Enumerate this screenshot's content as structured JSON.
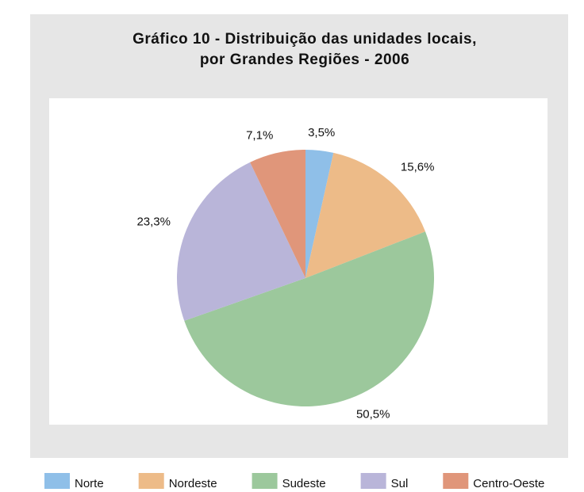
{
  "chart_data": {
    "type": "pie",
    "title": [
      "Gráfico 10 - Distribuição das unidades locais,",
      "por Grandes Regiões - 2006"
    ],
    "categories": [
      "Norte",
      "Nordeste",
      "Sudeste",
      "Sul",
      "Centro-Oeste"
    ],
    "values": [
      3.5,
      15.6,
      50.5,
      23.3,
      7.1
    ],
    "value_labels": [
      "3,5%",
      "15,6%",
      "50,5%",
      "23,3%",
      "7,1%"
    ],
    "colors": [
      "#8fbfe8",
      "#edbb88",
      "#9cc89c",
      "#b9b5d9",
      "#e0967a"
    ],
    "legend": "bottom"
  }
}
